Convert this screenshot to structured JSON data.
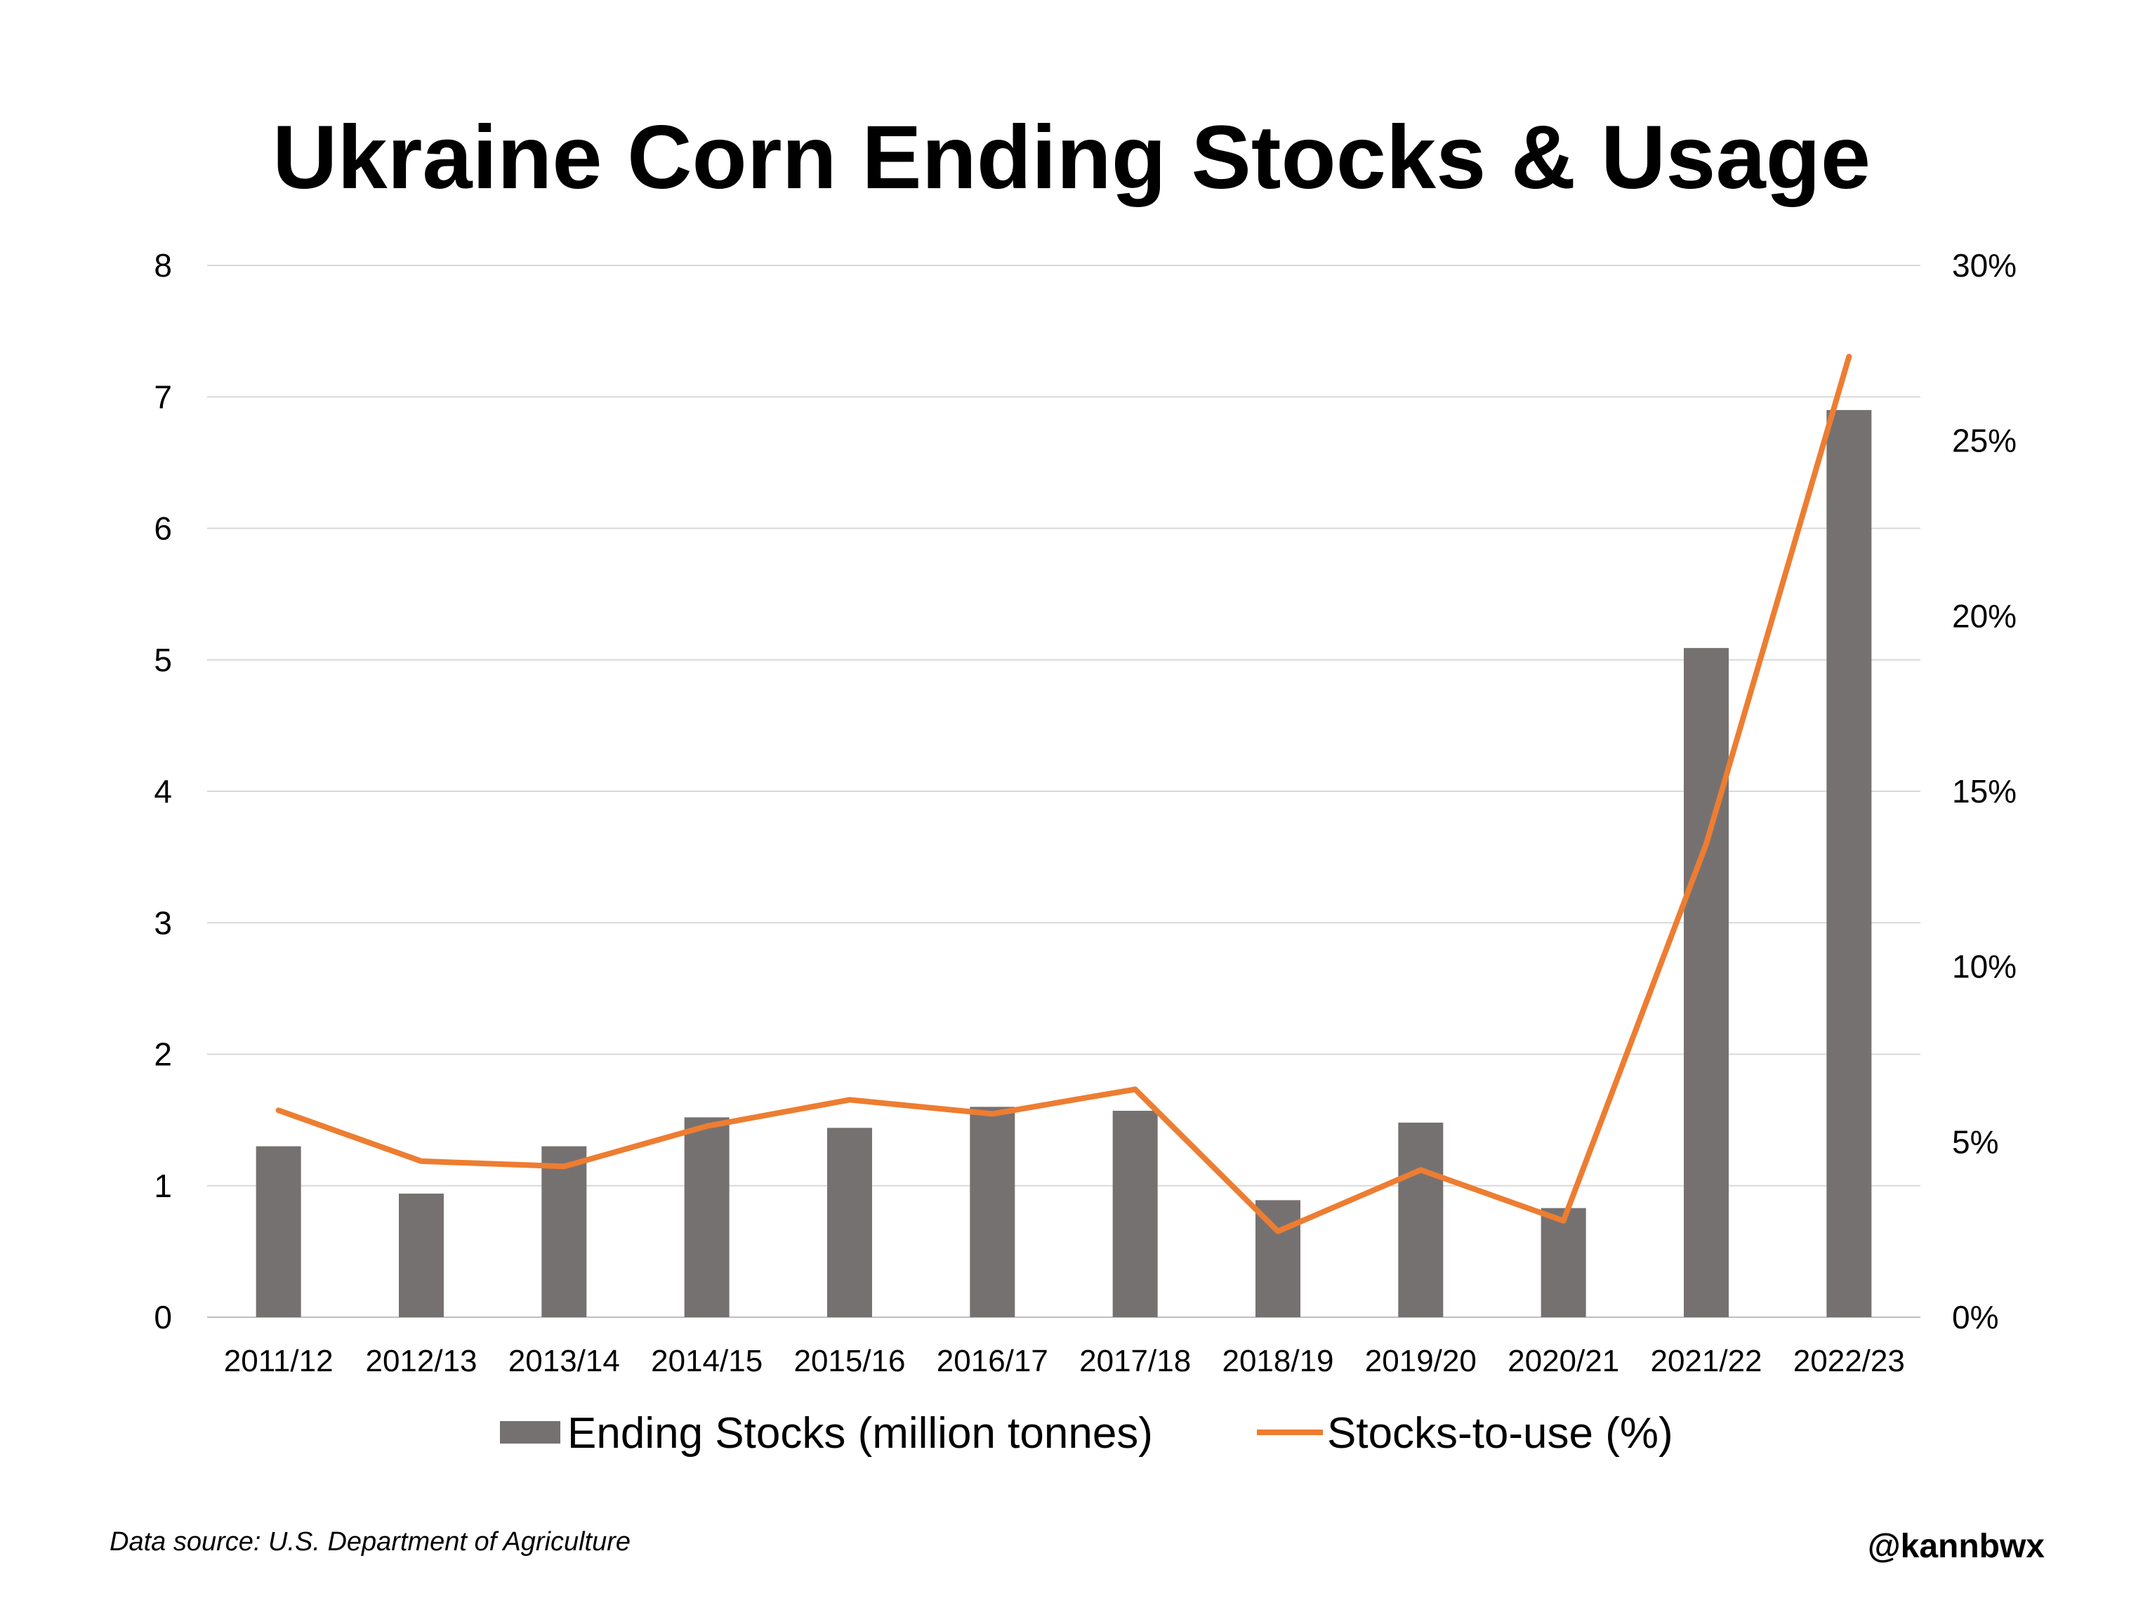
{
  "chart_data": {
    "type": "bar",
    "title": "Ukraine Corn Ending Stocks & Usage",
    "categories": [
      "2011/12",
      "2012/13",
      "2013/14",
      "2014/15",
      "2015/16",
      "2016/17",
      "2017/18",
      "2018/19",
      "2019/20",
      "2020/21",
      "2021/22",
      "2022/23"
    ],
    "series": [
      {
        "name": "Ending Stocks (million tonnes)",
        "type": "bar",
        "axis": "left",
        "color": "#767171",
        "values": [
          1.3,
          0.94,
          1.3,
          1.52,
          1.44,
          1.6,
          1.57,
          0.89,
          1.48,
          0.83,
          5.09,
          6.9
        ]
      },
      {
        "name": "Stocks-to-use (%)",
        "type": "line",
        "axis": "right",
        "color": "#ED7D31",
        "values": [
          5.9,
          4.45,
          4.3,
          5.45,
          6.2,
          5.8,
          6.5,
          2.45,
          4.2,
          2.75,
          13.5,
          27.4
        ]
      }
    ],
    "y_left": {
      "ylim": [
        0,
        8
      ],
      "ticks": [
        "0",
        "1",
        "2",
        "3",
        "4",
        "5",
        "6",
        "7",
        "8"
      ]
    },
    "y_right": {
      "ylim": [
        0,
        30
      ],
      "ticks": [
        "0%",
        "5%",
        "10%",
        "15%",
        "20%",
        "25%",
        "30%"
      ]
    },
    "grid": true,
    "legend": "bottom"
  },
  "footer": {
    "source": "Data source: U.S. Department of Agriculture",
    "handle": "@kannbwx"
  }
}
